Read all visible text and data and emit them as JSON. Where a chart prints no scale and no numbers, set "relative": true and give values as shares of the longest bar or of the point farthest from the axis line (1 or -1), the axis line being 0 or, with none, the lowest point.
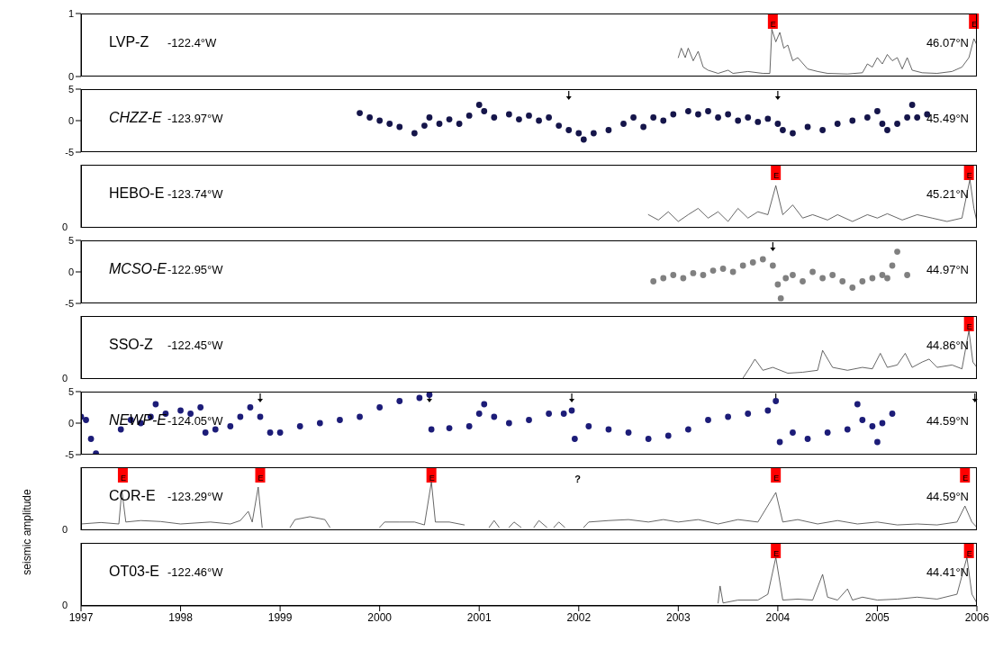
{
  "chart_data": [
    {
      "type": "line",
      "title": "LVP-Z",
      "xlim": [
        1997,
        2006
      ],
      "xticks": [
        1997,
        1998,
        1999,
        2000,
        2001,
        2002,
        2003,
        2004,
        2005,
        2006
      ],
      "ylim": [
        0,
        1
      ],
      "yticks": [
        0,
        1
      ],
      "tick_labels": "y",
      "annotations": [
        "-122.4°W",
        "46.07°N"
      ],
      "ref_lines": [
        {
          "axis": "x",
          "value": 2003.95,
          "label": "E",
          "color": "#ff0000"
        },
        {
          "axis": "x",
          "value": 2005.97,
          "label": "E",
          "color": "#ff0000"
        }
      ],
      "series": [
        {
          "color": "#404040",
          "x": [
            2003.0,
            2003.03,
            2003.07,
            2003.1,
            2003.15,
            2003.2,
            2003.25,
            2003.3,
            2003.4,
            2003.5,
            2003.55,
            2003.7,
            2003.85,
            2003.92,
            2003.94,
            2003.98,
            2004.02,
            2004.06,
            2004.1,
            2004.15,
            2004.2,
            2004.3,
            2004.4,
            2004.5,
            2004.7,
            2004.85,
            2004.9,
            2004.95,
            2005.0,
            2005.05,
            2005.1,
            2005.15,
            2005.2,
            2005.25,
            2005.3,
            2005.35,
            2005.45,
            2005.6,
            2005.75,
            2005.85,
            2005.92,
            2005.97,
            2006.0
          ],
          "values": [
            0.3,
            0.45,
            0.3,
            0.45,
            0.25,
            0.4,
            0.15,
            0.1,
            0.05,
            0.1,
            0.05,
            0.08,
            0.05,
            0.05,
            0.75,
            0.55,
            0.7,
            0.45,
            0.5,
            0.25,
            0.3,
            0.12,
            0.08,
            0.05,
            0.04,
            0.06,
            0.2,
            0.15,
            0.3,
            0.2,
            0.35,
            0.25,
            0.3,
            0.12,
            0.3,
            0.1,
            0.06,
            0.05,
            0.08,
            0.15,
            0.3,
            0.6,
            0.5
          ]
        }
      ]
    },
    {
      "type": "scatter",
      "title": "CHZZ-E",
      "xlim": [
        1997,
        2006
      ],
      "xticks": [
        1997,
        1998,
        1999,
        2000,
        2001,
        2002,
        2003,
        2004,
        2005,
        2006
      ],
      "ylim": [
        -5,
        5
      ],
      "yticks": [
        -5,
        0,
        5
      ],
      "tick_labels": "y",
      "marker": "circle",
      "annotations": [
        "-123.97°W",
        "45.49°N"
      ],
      "ref_lines": [
        {
          "axis": "x",
          "value": 2001.9
        },
        {
          "axis": "x",
          "value": 2004.0
        }
      ],
      "series": [
        {
          "color": "#15154a",
          "x": [
            1999.8,
            1999.9,
            2000.0,
            2000.1,
            2000.2,
            2000.35,
            2000.45,
            2000.5,
            2000.6,
            2000.7,
            2000.8,
            2000.9,
            2001.0,
            2001.05,
            2001.15,
            2001.3,
            2001.4,
            2001.5,
            2001.6,
            2001.7,
            2001.8,
            2001.9,
            2002.0,
            2002.05,
            2002.15,
            2002.3,
            2002.45,
            2002.55,
            2002.65,
            2002.75,
            2002.85,
            2002.95,
            2003.1,
            2003.2,
            2003.3,
            2003.4,
            2003.5,
            2003.6,
            2003.7,
            2003.8,
            2003.9,
            2004.0,
            2004.05,
            2004.15,
            2004.3,
            2004.45,
            2004.6,
            2004.75,
            2004.9,
            2005.0,
            2005.05,
            2005.1,
            2005.2,
            2005.3,
            2005.35,
            2005.4,
            2005.5
          ],
          "values": [
            1.2,
            0.5,
            0,
            -0.5,
            -1.0,
            -2.0,
            -0.8,
            0.5,
            -0.5,
            0.2,
            -0.5,
            0.8,
            2.5,
            1.5,
            0.5,
            1.0,
            0.2,
            0.8,
            0,
            0.5,
            -0.8,
            -1.5,
            -2.0,
            -3.0,
            -2.0,
            -1.5,
            -0.5,
            0.5,
            -1.0,
            0.5,
            0,
            1.0,
            1.5,
            1.0,
            1.5,
            0.5,
            1.0,
            0,
            0.5,
            -0.2,
            0.3,
            -0.5,
            -1.5,
            -2.0,
            -1.0,
            -1.5,
            -0.5,
            0,
            0.5,
            1.5,
            -0.5,
            -1.5,
            -0.5,
            0.5,
            2.5,
            0.5,
            1.0
          ]
        }
      ]
    },
    {
      "type": "line",
      "title": "HEBO-E",
      "relative": true,
      "xlim": [
        1997,
        2006
      ],
      "xticks": [
        1997,
        1998,
        1999,
        2000,
        2001,
        2002,
        2003,
        2004,
        2005,
        2006
      ],
      "tick_labels": "y",
      "annotations": [
        "-123.74°W",
        "45.21°N",
        "0"
      ],
      "ref_lines": [
        {
          "axis": "x",
          "value": 2003.98,
          "label": "E",
          "color": "#ff0000"
        },
        {
          "axis": "x",
          "value": 2005.92,
          "label": "E",
          "color": "#ff0000"
        }
      ],
      "series": [
        {
          "color": "#404040",
          "x": [
            2002.7,
            2002.8,
            2002.9,
            2003.0,
            2003.1,
            2003.2,
            2003.3,
            2003.4,
            2003.5,
            2003.6,
            2003.7,
            2003.8,
            2003.9,
            2003.98,
            2004.05,
            2004.15,
            2004.25,
            2004.35,
            2004.5,
            2004.6,
            2004.75,
            2004.9,
            2005.0,
            2005.1,
            2005.25,
            2005.4,
            2005.55,
            2005.7,
            2005.85,
            2005.93,
            2005.97,
            2006.0
          ],
          "values": [
            0.27,
            0.16,
            0.33,
            0.13,
            0.27,
            0.4,
            0.2,
            0.33,
            0.13,
            0.4,
            0.2,
            0.33,
            0.27,
            0.87,
            0.27,
            0.47,
            0.2,
            0.27,
            0.16,
            0.27,
            0.13,
            0.27,
            0.2,
            0.29,
            0.16,
            0.27,
            0.2,
            0.13,
            0.2,
            1,
            0.4,
            0.13
          ]
        }
      ]
    },
    {
      "type": "scatter",
      "title": "MCSO-E",
      "xlim": [
        1997,
        2006
      ],
      "xticks": [
        1997,
        1998,
        1999,
        2000,
        2001,
        2002,
        2003,
        2004,
        2005,
        2006
      ],
      "ylim": [
        -5,
        5
      ],
      "yticks": [
        -5,
        0,
        5
      ],
      "tick_labels": "y",
      "marker": "circle",
      "annotations": [
        "-122.95°W",
        "44.97°N"
      ],
      "ref_lines": [
        {
          "axis": "x",
          "value": 2003.95
        }
      ],
      "series": [
        {
          "color": "#808080",
          "x": [
            2002.75,
            2002.85,
            2002.95,
            2003.05,
            2003.15,
            2003.25,
            2003.35,
            2003.45,
            2003.55,
            2003.65,
            2003.75,
            2003.85,
            2003.95,
            2004.0,
            2004.03,
            2004.08,
            2004.15,
            2004.25,
            2004.35,
            2004.45,
            2004.55,
            2004.65,
            2004.75,
            2004.85,
            2004.95,
            2005.05,
            2005.1,
            2005.15,
            2005.2,
            2005.3
          ],
          "values": [
            -1.5,
            -1.0,
            -0.5,
            -1.0,
            -0.2,
            -0.5,
            0.2,
            0.5,
            0,
            1.0,
            1.5,
            2.0,
            1.0,
            -2.0,
            -4.2,
            -1.0,
            -0.5,
            -1.5,
            0,
            -1.0,
            -0.5,
            -1.5,
            -2.5,
            -1.5,
            -1.0,
            -0.5,
            -1.0,
            1.0,
            3.2,
            -0.5
          ]
        }
      ]
    },
    {
      "type": "line",
      "title": "SSO-Z",
      "relative": true,
      "xlim": [
        1997,
        2006
      ],
      "xticks": [
        1997,
        1998,
        1999,
        2000,
        2001,
        2002,
        2003,
        2004,
        2005,
        2006
      ],
      "tick_labels": "y",
      "annotations": [
        "-122.45°W",
        "44.86°N",
        "0"
      ],
      "ref_lines": [
        {
          "axis": "x",
          "value": 2005.92,
          "label": "E",
          "color": "#ff0000"
        }
      ],
      "series": [
        {
          "color": "#404040",
          "x": [
            2003.65,
            2003.72,
            2003.77,
            2003.85,
            2003.95,
            2004.1,
            2004.25,
            2004.4,
            2004.45,
            2004.55,
            2004.7,
            2004.85,
            2004.95,
            2005.03,
            2005.1,
            2005.2,
            2005.28,
            2005.35,
            2005.45,
            2005.52,
            2005.6,
            2005.75,
            2005.85,
            2005.92,
            2005.96,
            2006.0
          ],
          "values": [
            0.02,
            0.24,
            0.41,
            0.18,
            0.24,
            0.12,
            0.14,
            0.18,
            0.59,
            0.24,
            0.18,
            0.24,
            0.21,
            0.53,
            0.24,
            0.29,
            0.53,
            0.24,
            0.35,
            0.41,
            0.24,
            0.29,
            0.21,
            1,
            0.35,
            0.24
          ]
        }
      ]
    },
    {
      "type": "scatter",
      "title": "NEWP-E",
      "xlim": [
        1997,
        2006
      ],
      "xticks": [
        1997,
        1998,
        1999,
        2000,
        2001,
        2002,
        2003,
        2004,
        2005,
        2006
      ],
      "ylim": [
        -5,
        5
      ],
      "yticks": [
        -5,
        0,
        5
      ],
      "tick_labels": "y",
      "marker": "circle",
      "annotations": [
        "-124.05°W",
        "44.59°N"
      ],
      "ref_lines": [
        {
          "axis": "x",
          "value": 1998.8
        },
        {
          "axis": "x",
          "value": 2000.5
        },
        {
          "axis": "x",
          "value": 2001.93
        },
        {
          "axis": "x",
          "value": 2003.98
        },
        {
          "axis": "x",
          "value": 2005.98
        }
      ],
      "series": [
        {
          "color": "#1c1c78",
          "x": [
            1997.0,
            1997.05,
            1997.1,
            1997.15,
            1997.4,
            1997.5,
            1997.6,
            1997.7,
            1997.75,
            1997.85,
            1998.0,
            1998.1,
            1998.2,
            1998.25,
            1998.35,
            1998.5,
            1998.6,
            1998.7,
            1998.8,
            1998.9,
            1999.0,
            1999.2,
            1999.4,
            1999.6,
            1999.8,
            2000.0,
            2000.2,
            2000.4,
            2000.5,
            2000.52,
            2000.7,
            2000.9,
            2001.0,
            2001.05,
            2001.15,
            2001.3,
            2001.5,
            2001.7,
            2001.85,
            2001.93,
            2001.96,
            2002.1,
            2002.3,
            2002.5,
            2002.7,
            2002.9,
            2003.1,
            2003.3,
            2003.5,
            2003.7,
            2003.9,
            2003.98,
            2004.02,
            2004.15,
            2004.3,
            2004.5,
            2004.7,
            2004.8,
            2004.85,
            2004.95,
            2005.0,
            2005.05,
            2005.15
          ],
          "values": [
            1.0,
            0.5,
            -2.5,
            -4.8,
            -1.0,
            0.5,
            0,
            1.0,
            3.0,
            1.5,
            2.0,
            1.5,
            2.5,
            -1.5,
            -1.0,
            -0.5,
            1.0,
            2.5,
            1.0,
            -1.5,
            -1.5,
            -0.5,
            0,
            0.5,
            1.0,
            2.5,
            3.5,
            4.0,
            4.5,
            -1.0,
            -0.8,
            -0.5,
            1.5,
            3.0,
            1.0,
            0,
            0.5,
            1.5,
            1.5,
            2.0,
            -2.5,
            -0.5,
            -1.0,
            -1.5,
            -2.5,
            -2.0,
            -1.0,
            0.5,
            1.0,
            1.5,
            2.0,
            3.5,
            -3.0,
            -1.5,
            -2.5,
            -1.5,
            -1.0,
            3.0,
            0.5,
            -0.5,
            -3.0,
            0,
            1.5
          ]
        }
      ]
    },
    {
      "type": "line",
      "title": "COR-E",
      "ylabel": "seismic amplitude",
      "relative": true,
      "xlim": [
        1997,
        2006
      ],
      "xticks": [
        1997,
        1998,
        1999,
        2000,
        2001,
        2002,
        2003,
        2004,
        2005,
        2006
      ],
      "tick_labels": "y",
      "annotations": [
        "-123.29°W",
        "44.59°N",
        "0",
        "?"
      ],
      "ref_lines": [
        {
          "axis": "x",
          "value": 1997.42,
          "label": "E",
          "color": "#ff0000"
        },
        {
          "axis": "x",
          "value": 1998.8,
          "label": "E",
          "color": "#ff0000"
        },
        {
          "axis": "x",
          "value": 2000.52,
          "label": "E",
          "color": "#ff0000"
        },
        {
          "axis": "x",
          "value": 2003.98,
          "label": "E",
          "color": "#ff0000"
        },
        {
          "axis": "x",
          "value": 2005.88,
          "label": "E",
          "color": "#ff0000"
        }
      ],
      "series": [
        {
          "color": "#404040",
          "x": [
            1997.0,
            1997.2,
            1997.38,
            1997.41,
            1997.45,
            1997.6,
            1997.8,
            1998.0,
            1998.3,
            1998.5,
            1998.6,
            1998.68,
            1998.72,
            1998.78,
            1998.82,
            1998.9,
            1999.1,
            1999.15,
            1999.3,
            1999.45,
            1999.5,
            1999.7,
            2000.0,
            2000.05,
            2000.2,
            2000.35,
            2000.45,
            2000.52,
            2000.56,
            2000.7,
            2000.85,
            2000.95,
            2001.1,
            2001.15,
            2001.2,
            2001.25,
            2001.3,
            2001.35,
            2001.42,
            2001.5,
            2001.55,
            2001.6,
            2001.68,
            2001.72,
            2001.75,
            2001.8,
            2001.86,
            2001.95,
            2002.05,
            2002.1,
            2002.3,
            2002.5,
            2002.7,
            2002.85,
            2003.0,
            2003.2,
            2003.4,
            2003.6,
            2003.8,
            2003.98,
            2004.05,
            2004.2,
            2004.4,
            2004.6,
            2004.8,
            2005.0,
            2005.2,
            2005.4,
            2005.6,
            2005.8,
            2005.88,
            2005.95,
            2006.0
          ],
          "values": [
            0.13,
            0.16,
            0.13,
            0.83,
            0.17,
            0.2,
            0.18,
            0.13,
            0.17,
            0.13,
            0.2,
            0.39,
            0.17,
            0.89,
            0.06,
            null,
            0.06,
            0.22,
            0.28,
            0.22,
            0.06,
            null,
            0.06,
            0.17,
            0.17,
            0.17,
            0.11,
            1,
            0.17,
            0.17,
            0.11,
            null,
            0.06,
            0.2,
            0.06,
            null,
            0.06,
            0.17,
            0.06,
            null,
            0.06,
            0.2,
            0.06,
            null,
            0.06,
            0.17,
            0.06,
            null,
            0.06,
            0.17,
            0.2,
            0.22,
            0.17,
            0.22,
            0.17,
            0.22,
            0.13,
            0.22,
            0.17,
            0.78,
            0.17,
            0.22,
            0.13,
            0.2,
            0.13,
            0.17,
            0.11,
            0.13,
            0.11,
            0.17,
            0.5,
            0.17,
            0.06
          ]
        }
      ]
    },
    {
      "type": "line",
      "title": "OT03-E",
      "relative": true,
      "xlim": [
        1997,
        2006
      ],
      "xticks": [
        1997,
        1998,
        1999,
        2000,
        2001,
        2002,
        2003,
        2004,
        2005,
        2006
      ],
      "annotations": [
        "-122.46°W",
        "44.41°N",
        "0"
      ],
      "ref_lines": [
        {
          "axis": "x",
          "value": 2003.98,
          "label": "E",
          "color": "#ff0000"
        },
        {
          "axis": "x",
          "value": 2005.92,
          "label": "E",
          "color": "#ff0000"
        }
      ],
      "series": [
        {
          "color": "#404040",
          "x": [
            2003.4,
            2003.42,
            2003.45,
            2003.6,
            2003.8,
            2003.9,
            2003.98,
            2004.05,
            2004.2,
            2004.35,
            2004.45,
            2004.5,
            2004.6,
            2004.7,
            2004.75,
            2004.85,
            2005.0,
            2005.2,
            2005.4,
            2005.6,
            2005.8,
            2005.9,
            2005.95,
            2006.0
          ],
          "values": [
            0.06,
            0.41,
            0.06,
            0.12,
            0.12,
            0.24,
            1,
            0.12,
            0.14,
            0.12,
            0.65,
            0.18,
            0.12,
            0.35,
            0.12,
            0.18,
            0.12,
            0.14,
            0.18,
            0.14,
            0.24,
            1,
            0.24,
            0.06
          ]
        }
      ]
    }
  ]
}
